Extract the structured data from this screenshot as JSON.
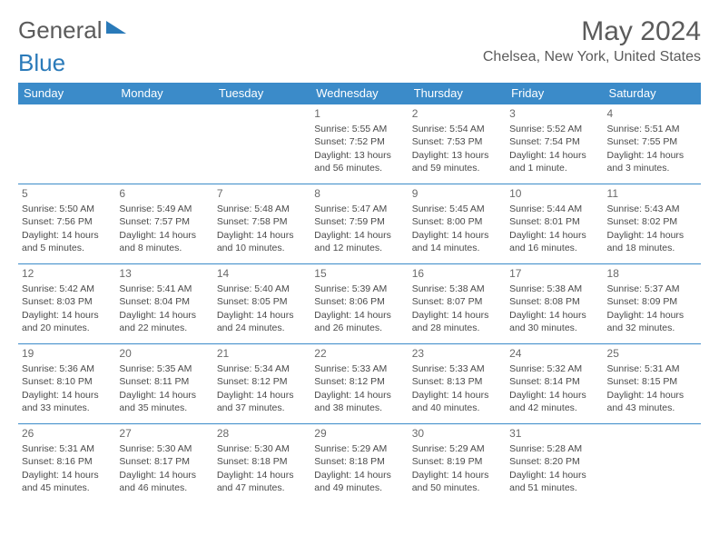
{
  "logo": {
    "part1": "General",
    "part2": "Blue"
  },
  "title": "May 2024",
  "location": "Chelsea, New York, United States",
  "header_bg": "#3b8bc9",
  "border_color": "#3b8bc9",
  "text_color": "#4a4a4a",
  "days_of_week": [
    "Sunday",
    "Monday",
    "Tuesday",
    "Wednesday",
    "Thursday",
    "Friday",
    "Saturday"
  ],
  "weeks": [
    [
      null,
      null,
      null,
      {
        "n": "1",
        "sr": "5:55 AM",
        "ss": "7:52 PM",
        "dl": "13 hours and 56 minutes."
      },
      {
        "n": "2",
        "sr": "5:54 AM",
        "ss": "7:53 PM",
        "dl": "13 hours and 59 minutes."
      },
      {
        "n": "3",
        "sr": "5:52 AM",
        "ss": "7:54 PM",
        "dl": "14 hours and 1 minute."
      },
      {
        "n": "4",
        "sr": "5:51 AM",
        "ss": "7:55 PM",
        "dl": "14 hours and 3 minutes."
      }
    ],
    [
      {
        "n": "5",
        "sr": "5:50 AM",
        "ss": "7:56 PM",
        "dl": "14 hours and 5 minutes."
      },
      {
        "n": "6",
        "sr": "5:49 AM",
        "ss": "7:57 PM",
        "dl": "14 hours and 8 minutes."
      },
      {
        "n": "7",
        "sr": "5:48 AM",
        "ss": "7:58 PM",
        "dl": "14 hours and 10 minutes."
      },
      {
        "n": "8",
        "sr": "5:47 AM",
        "ss": "7:59 PM",
        "dl": "14 hours and 12 minutes."
      },
      {
        "n": "9",
        "sr": "5:45 AM",
        "ss": "8:00 PM",
        "dl": "14 hours and 14 minutes."
      },
      {
        "n": "10",
        "sr": "5:44 AM",
        "ss": "8:01 PM",
        "dl": "14 hours and 16 minutes."
      },
      {
        "n": "11",
        "sr": "5:43 AM",
        "ss": "8:02 PM",
        "dl": "14 hours and 18 minutes."
      }
    ],
    [
      {
        "n": "12",
        "sr": "5:42 AM",
        "ss": "8:03 PM",
        "dl": "14 hours and 20 minutes."
      },
      {
        "n": "13",
        "sr": "5:41 AM",
        "ss": "8:04 PM",
        "dl": "14 hours and 22 minutes."
      },
      {
        "n": "14",
        "sr": "5:40 AM",
        "ss": "8:05 PM",
        "dl": "14 hours and 24 minutes."
      },
      {
        "n": "15",
        "sr": "5:39 AM",
        "ss": "8:06 PM",
        "dl": "14 hours and 26 minutes."
      },
      {
        "n": "16",
        "sr": "5:38 AM",
        "ss": "8:07 PM",
        "dl": "14 hours and 28 minutes."
      },
      {
        "n": "17",
        "sr": "5:38 AM",
        "ss": "8:08 PM",
        "dl": "14 hours and 30 minutes."
      },
      {
        "n": "18",
        "sr": "5:37 AM",
        "ss": "8:09 PM",
        "dl": "14 hours and 32 minutes."
      }
    ],
    [
      {
        "n": "19",
        "sr": "5:36 AM",
        "ss": "8:10 PM",
        "dl": "14 hours and 33 minutes."
      },
      {
        "n": "20",
        "sr": "5:35 AM",
        "ss": "8:11 PM",
        "dl": "14 hours and 35 minutes."
      },
      {
        "n": "21",
        "sr": "5:34 AM",
        "ss": "8:12 PM",
        "dl": "14 hours and 37 minutes."
      },
      {
        "n": "22",
        "sr": "5:33 AM",
        "ss": "8:12 PM",
        "dl": "14 hours and 38 minutes."
      },
      {
        "n": "23",
        "sr": "5:33 AM",
        "ss": "8:13 PM",
        "dl": "14 hours and 40 minutes."
      },
      {
        "n": "24",
        "sr": "5:32 AM",
        "ss": "8:14 PM",
        "dl": "14 hours and 42 minutes."
      },
      {
        "n": "25",
        "sr": "5:31 AM",
        "ss": "8:15 PM",
        "dl": "14 hours and 43 minutes."
      }
    ],
    [
      {
        "n": "26",
        "sr": "5:31 AM",
        "ss": "8:16 PM",
        "dl": "14 hours and 45 minutes."
      },
      {
        "n": "27",
        "sr": "5:30 AM",
        "ss": "8:17 PM",
        "dl": "14 hours and 46 minutes."
      },
      {
        "n": "28",
        "sr": "5:30 AM",
        "ss": "8:18 PM",
        "dl": "14 hours and 47 minutes."
      },
      {
        "n": "29",
        "sr": "5:29 AM",
        "ss": "8:18 PM",
        "dl": "14 hours and 49 minutes."
      },
      {
        "n": "30",
        "sr": "5:29 AM",
        "ss": "8:19 PM",
        "dl": "14 hours and 50 minutes."
      },
      {
        "n": "31",
        "sr": "5:28 AM",
        "ss": "8:20 PM",
        "dl": "14 hours and 51 minutes."
      },
      null
    ]
  ],
  "labels": {
    "sunrise": "Sunrise:",
    "sunset": "Sunset:",
    "daylight": "Daylight:"
  }
}
